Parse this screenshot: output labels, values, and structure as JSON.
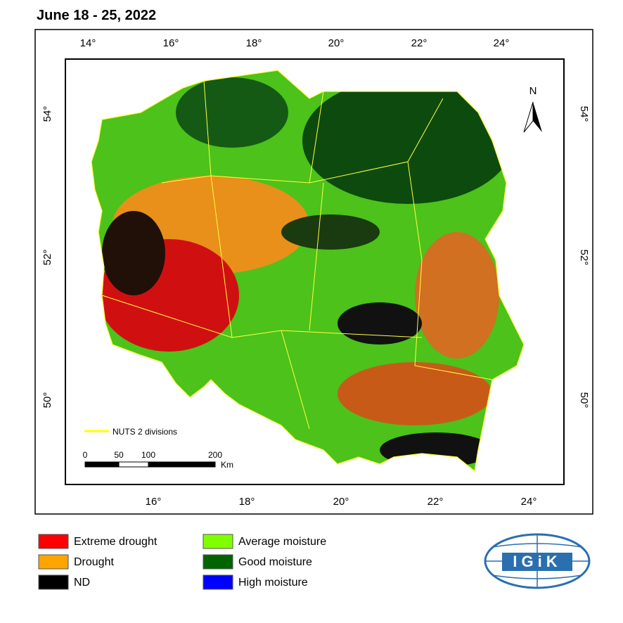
{
  "title": "June 18 - 25, 2022",
  "map": {
    "top_ticks": [
      "14°",
      "16°",
      "18°",
      "20°",
      "22°",
      "24°"
    ],
    "bottom_ticks": [
      "16°",
      "18°",
      "20°",
      "22°",
      "24°"
    ],
    "left_ticks": [
      "54°",
      "52°",
      "50°"
    ],
    "right_ticks": [
      "54°",
      "52°",
      "50°"
    ],
    "north": "N",
    "boundary_legend": "NUTS 2 divisions",
    "scale_labels": [
      "0",
      "50",
      "100",
      "200"
    ],
    "scale_unit": "Km"
  },
  "legend": [
    {
      "label": "Extreme drought",
      "color": "#ff0000"
    },
    {
      "label": "Drought",
      "color": "#ffa500"
    },
    {
      "label": "ND",
      "color": "#000000"
    },
    {
      "label": "Average moisture",
      "color": "#80ff00"
    },
    {
      "label": "Good moisture",
      "color": "#006400"
    },
    {
      "label": "High moisture",
      "color": "#0000ff"
    }
  ],
  "logo": "IGiK"
}
